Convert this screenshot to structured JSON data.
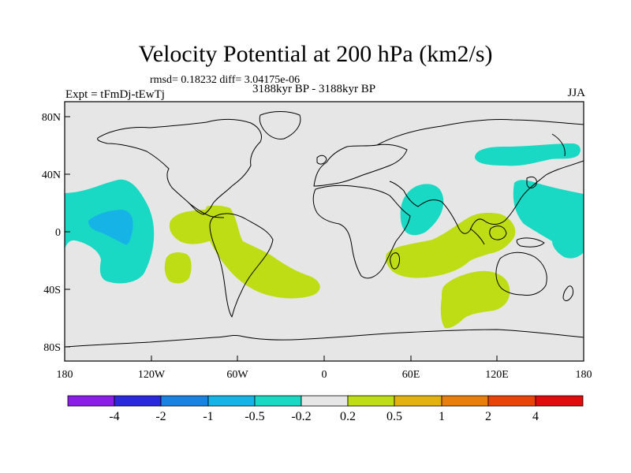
{
  "figure": {
    "title": "Velocity Potential at 200 hPa (km2/s)",
    "stats": "rmsd= 0.18232 diff= 3.04175e-06",
    "experiment": "Expt = tFmDj-tEwTj",
    "period": "3188kyr BP - 3188kyr BP",
    "season": "JJA"
  },
  "axes": {
    "lat_ticks": [
      {
        "value": 80,
        "label": "80N"
      },
      {
        "value": 40,
        "label": "40N"
      },
      {
        "value": 0,
        "label": "0"
      },
      {
        "value": -40,
        "label": "40S"
      },
      {
        "value": -80,
        "label": "80S"
      }
    ],
    "lon_ticks": [
      {
        "value": -180,
        "label": "180"
      },
      {
        "value": -120,
        "label": "120W"
      },
      {
        "value": -60,
        "label": "60W"
      },
      {
        "value": 0,
        "label": "0"
      },
      {
        "value": 60,
        "label": "60E"
      },
      {
        "value": 120,
        "label": "120E"
      },
      {
        "value": 180,
        "label": "180"
      }
    ]
  },
  "colorbar": {
    "colors": [
      "#8c1de6",
      "#2a2adc",
      "#1a82e0",
      "#16b4e6",
      "#1ad9c4",
      "#e6e6e6",
      "#bfdd14",
      "#e4b210",
      "#e87e0c",
      "#e8440a",
      "#e00c0c"
    ],
    "labels": [
      "-4",
      "-2",
      "-1",
      "-0.5",
      "-0.2",
      "0.2",
      "0.5",
      "1",
      "2",
      "4"
    ]
  },
  "colors": {
    "background": "#e6e6e6",
    "negative_weak": "#1ad9c4",
    "negative_mid": "#16b4e6",
    "positive_weak": "#bfdd14"
  }
}
